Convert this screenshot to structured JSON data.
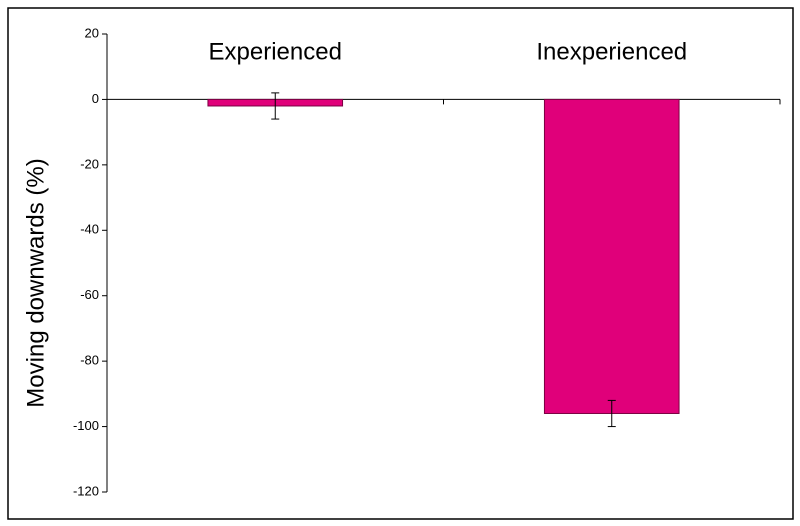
{
  "chart_data": {
    "type": "bar",
    "y_label": "Moving downwards (%)",
    "categories": [
      "Experienced",
      "Inexperienced"
    ],
    "values": [
      -2,
      -96
    ],
    "errors": [
      4,
      4
    ],
    "color": "#e0007a",
    "ylim": [
      -120,
      20
    ],
    "yticks": [
      -120,
      -100,
      -80,
      -60,
      -40,
      -20,
      0,
      20
    ]
  }
}
